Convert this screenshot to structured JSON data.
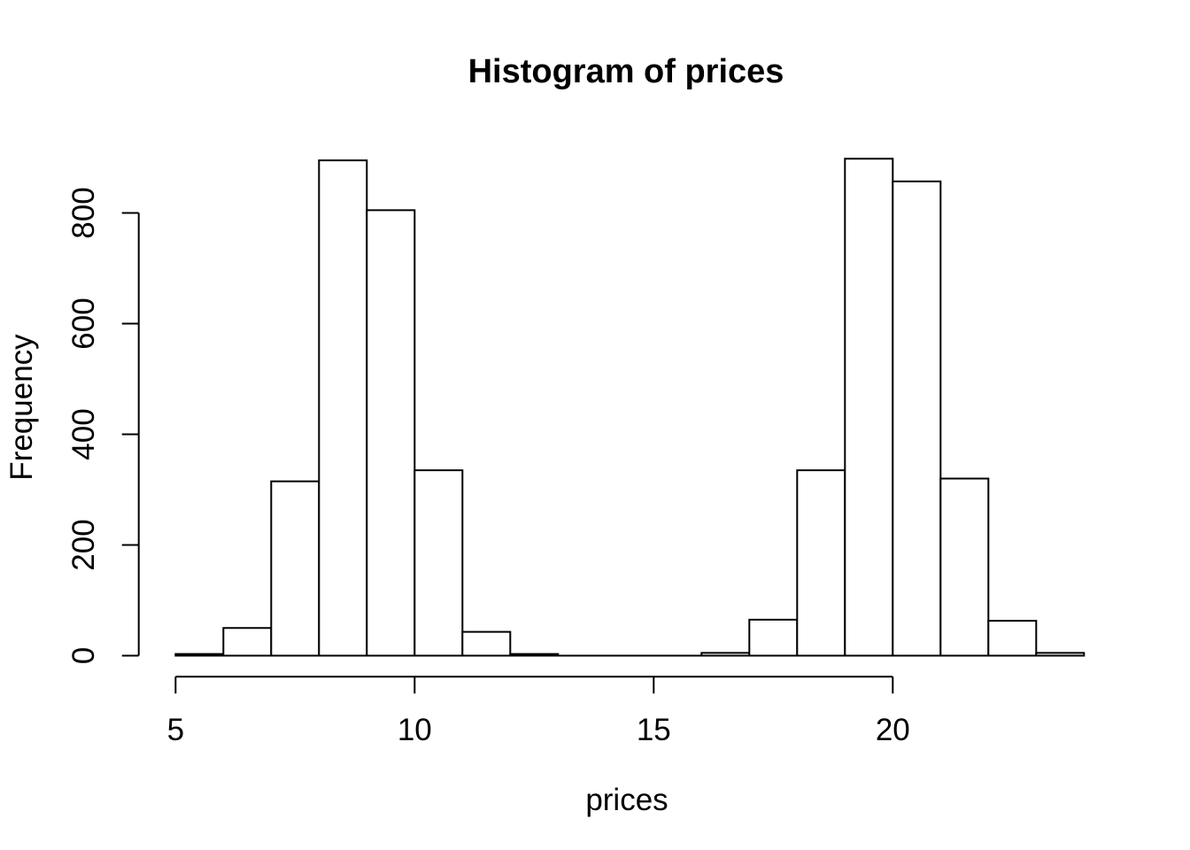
{
  "page": {
    "background_color": "#ffffff",
    "foreground_color": "#000000"
  },
  "chart_data": {
    "type": "bar",
    "subtype": "histogram",
    "title": "Histogram of prices",
    "xlabel": "prices",
    "ylabel": "Frequency",
    "bin_edges": [
      5,
      6,
      7,
      8,
      9,
      10,
      11,
      12,
      13,
      14,
      15,
      16,
      17,
      18,
      19,
      20,
      21,
      22,
      23,
      24
    ],
    "counts": [
      3,
      50,
      315,
      895,
      805,
      335,
      43,
      3,
      0,
      0,
      0,
      5,
      65,
      335,
      898,
      857,
      320,
      63,
      5
    ],
    "x_ticks": [
      5,
      10,
      15,
      20
    ],
    "y_ticks": [
      0,
      200,
      400,
      600,
      800
    ],
    "xlim": [
      5,
      24
    ],
    "ylim": [
      0,
      800
    ],
    "grid": false,
    "legend_position": "none",
    "bar_fill": "#ffffff",
    "bar_stroke": "#000000",
    "axis_color": "#000000",
    "text_color": "#000000"
  }
}
